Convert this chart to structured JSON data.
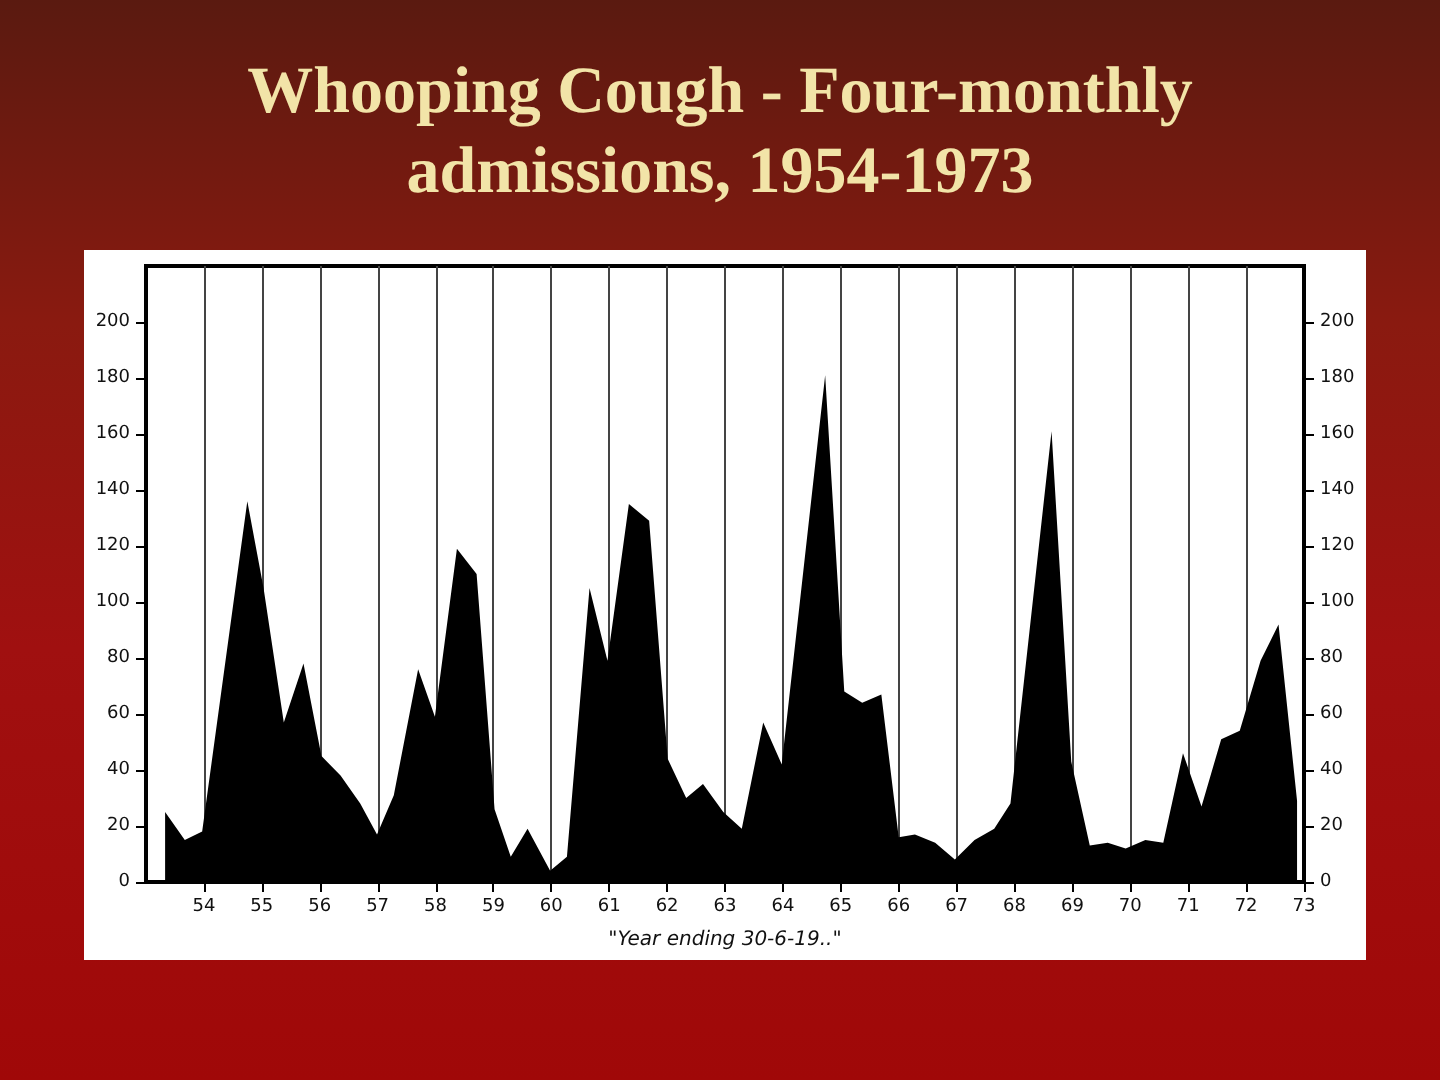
{
  "chart_data": {
    "type": "area",
    "title": "Whooping Cough - Four-monthly admissions, 1954-1973",
    "xlabel": "\"Year ending 30-6-19..\"",
    "xlim": [
      53,
      73
    ],
    "xticks": [
      54,
      55,
      56,
      57,
      58,
      59,
      60,
      61,
      62,
      63,
      64,
      65,
      66,
      67,
      68,
      69,
      70,
      71,
      72,
      73
    ],
    "ylim": [
      0,
      220
    ],
    "yticks": [
      0,
      20,
      40,
      60,
      80,
      100,
      120,
      140,
      160,
      180,
      200
    ],
    "y2lim": [
      0,
      220
    ],
    "y2ticks": [
      0,
      20,
      40,
      60,
      80,
      100,
      120,
      140,
      160,
      180,
      200
    ],
    "grid": "x",
    "marker": "none",
    "series": [
      {
        "color": "#000000",
        "x": [
          53.33,
          53.67,
          53.97,
          54.75,
          55.03,
          55.38,
          55.72,
          56.03,
          56.36,
          56.7,
          56.99,
          57.28,
          57.7,
          57.99,
          58.37,
          58.71,
          59.02,
          59.3,
          59.59,
          59.98,
          60.27,
          60.66,
          60.97,
          61.34,
          61.69,
          62.01,
          62.33,
          62.62,
          62.97,
          63.29,
          63.66,
          63.98,
          64.73,
          65.06,
          65.37,
          65.7,
          66.0,
          66.28,
          66.63,
          66.97,
          67.31,
          67.65,
          67.93,
          68.64,
          68.98,
          69.3,
          69.61,
          69.92,
          70.26,
          70.57,
          70.91,
          71.23,
          71.57,
          71.89,
          72.25,
          72.56,
          72.88
        ],
        "values": [
          25,
          15,
          18,
          136,
          105,
          57,
          78,
          45,
          38,
          28,
          17,
          31,
          76,
          59,
          119,
          110,
          26,
          9,
          19,
          4,
          9,
          105,
          79,
          135,
          129,
          44,
          30,
          35,
          25,
          19,
          57,
          42,
          181,
          68,
          64,
          67,
          16,
          17,
          14,
          8,
          15,
          19,
          28,
          161,
          43,
          13,
          14,
          12,
          15,
          14,
          46,
          27,
          51,
          54,
          79,
          92,
          29
        ]
      }
    ]
  }
}
